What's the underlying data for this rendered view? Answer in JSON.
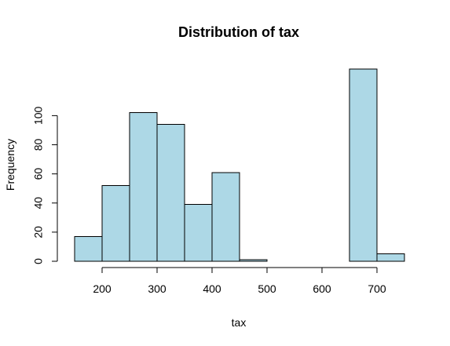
{
  "chart_data": {
    "type": "bar",
    "title": "Distribution of tax",
    "xlabel": "tax",
    "ylabel": "Frequency",
    "bins": [
      [
        150,
        200
      ],
      [
        200,
        250
      ],
      [
        250,
        300
      ],
      [
        300,
        350
      ],
      [
        350,
        400
      ],
      [
        400,
        450
      ],
      [
        450,
        500
      ],
      [
        500,
        550
      ],
      [
        550,
        600
      ],
      [
        600,
        650
      ],
      [
        650,
        700
      ],
      [
        700,
        750
      ]
    ],
    "values": [
      17,
      52,
      102,
      94,
      39,
      61,
      1,
      0,
      0,
      0,
      132,
      5
    ],
    "xlim": [
      150,
      750
    ],
    "ylim": [
      0,
      132
    ],
    "xticks": [
      200,
      300,
      400,
      500,
      600,
      700
    ],
    "yticks": [
      0,
      20,
      40,
      60,
      80,
      100
    ],
    "grid": false,
    "colors": {
      "bar_fill": "#add8e6",
      "bar_stroke": "#000000"
    }
  }
}
